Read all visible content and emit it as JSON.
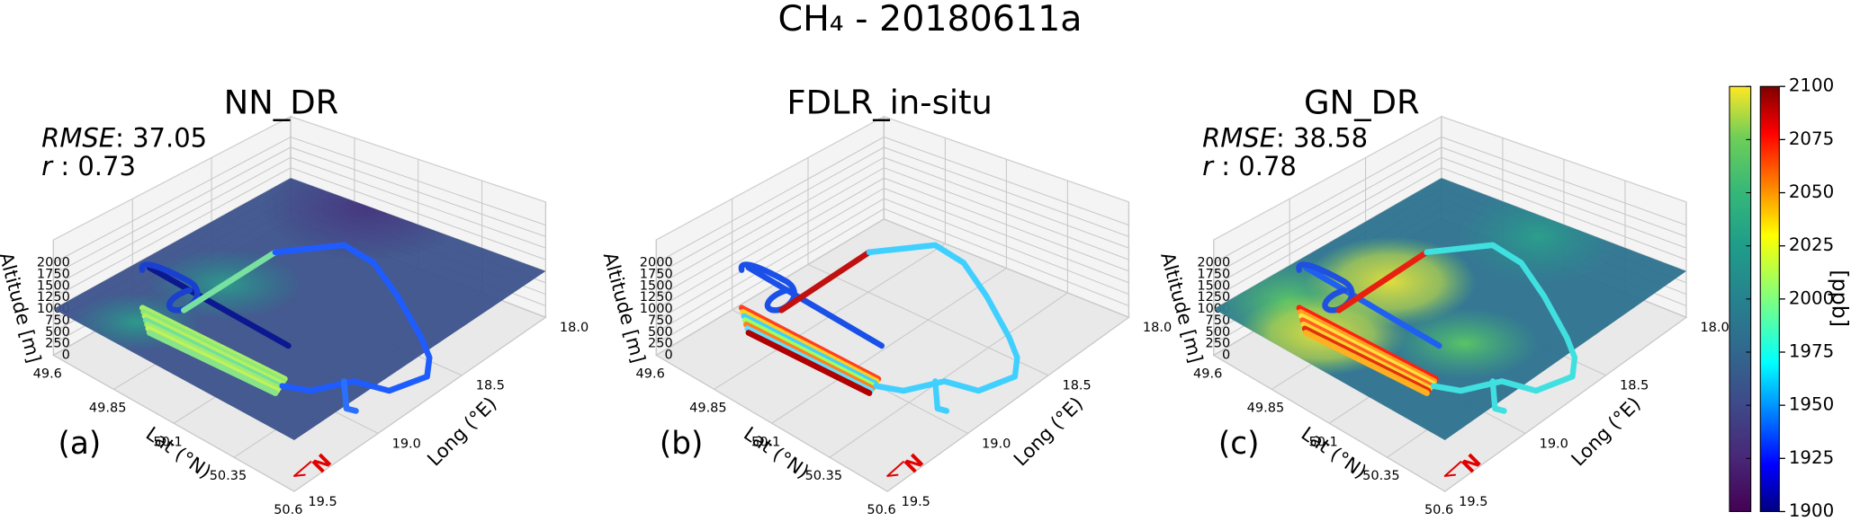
{
  "title": "CH₄ - 20180611a",
  "chart_data": [
    {
      "type": "3d-surface",
      "title": "NN_DR",
      "panel_label": "(a)",
      "metrics": [
        {
          "name": "RMSE",
          "separator": ": ",
          "value": 37.05
        },
        {
          "name": "r",
          "separator": " : ",
          "value": 0.73
        }
      ],
      "north_label": "N",
      "xlabel": "Long (°E)",
      "ylabel": "Lat (°N)",
      "zlabel": "Altitude [m]",
      "xlim": [
        18.0,
        19.5
      ],
      "xticks": [
        {
          "value": 18,
          "label": "18.0"
        },
        18.5,
        {
          "value": 19,
          "label": "19.0"
        },
        19.5
      ],
      "ylim": [
        49.6,
        50.6
      ],
      "yticks": [
        49.6,
        49.85,
        50.1,
        50.35,
        50.6
      ],
      "zlim": [
        0,
        2500
      ],
      "zticks": [
        0,
        250,
        500,
        750,
        1000,
        1250,
        1500,
        1750,
        2000
      ],
      "surface": true
    },
    {
      "type": "3d-surface",
      "title": "FDLR_in-situ",
      "panel_label": "(b)",
      "north_label": "N",
      "xlabel": "Long (°E)",
      "ylabel": "Lat (°N)",
      "zlabel": "Altitude [m]",
      "xlim": [
        18.0,
        19.5
      ],
      "xticks": [
        {
          "value": 18,
          "label": "18.0"
        },
        18.5,
        {
          "value": 19,
          "label": "19.0"
        },
        19.5
      ],
      "ylim": [
        49.6,
        50.6
      ],
      "yticks": [
        49.6,
        49.85,
        50.1,
        50.35,
        50.6
      ],
      "zlim": [
        0,
        2500
      ],
      "zticks": [
        0,
        250,
        500,
        750,
        1000,
        1250,
        1500,
        1750,
        2000
      ],
      "surface": false
    },
    {
      "type": "3d-surface",
      "title": "GN_DR",
      "panel_label": "(c)",
      "metrics": [
        {
          "name": "RMSE",
          "separator": ": ",
          "value": 38.58
        },
        {
          "name": "r",
          "separator": " : ",
          "value": 0.78
        }
      ],
      "north_label": "N",
      "xlabel": "Long (°E)",
      "ylabel": "Lat (°N)",
      "zlabel": "Altitude [m]",
      "xlim": [
        18.0,
        19.5
      ],
      "xticks": [
        {
          "value": 18,
          "label": "18.0"
        },
        18.5,
        {
          "value": 19,
          "label": "19.0"
        },
        19.5
      ],
      "ylim": [
        49.6,
        50.6
      ],
      "yticks": [
        49.6,
        49.85,
        50.1,
        50.35,
        50.6
      ],
      "zlim": [
        0,
        2500
      ],
      "zticks": [
        0,
        250,
        500,
        750,
        1000,
        1250,
        1500,
        1750,
        2000
      ],
      "surface": true
    },
    {
      "type": "colorbar",
      "label": "[ppb]",
      "lim": [
        1900,
        2100
      ],
      "ticks": [
        1900,
        1925,
        1950,
        1975,
        2000,
        2025,
        2050,
        2075,
        2100
      ],
      "colormaps": [
        "viridis",
        "jet"
      ]
    }
  ]
}
